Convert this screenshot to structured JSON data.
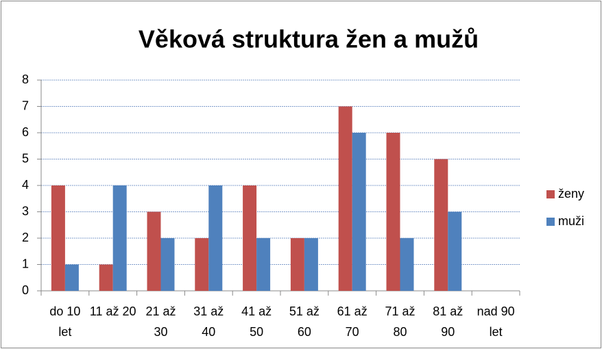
{
  "chart_data": {
    "type": "bar",
    "title": "Věková struktura žen a mužů",
    "categories": [
      "do 10 let",
      "11 až 20",
      "21 až 30",
      "31 až 40",
      "41 až 50",
      "51 až 60",
      "61 až 70",
      "71 až 80",
      "81 až 90",
      "nad 90 let"
    ],
    "series": [
      {
        "name": "ženy",
        "color": "#c0504d",
        "values": [
          4,
          1,
          3,
          2,
          4,
          2,
          7,
          6,
          5,
          null
        ]
      },
      {
        "name": "muži",
        "color": "#4f81bd",
        "values": [
          1,
          4,
          2,
          4,
          2,
          2,
          6,
          2,
          3,
          null
        ]
      }
    ],
    "ylim": [
      0,
      8
    ],
    "yticks": [
      0,
      1,
      2,
      3,
      4,
      5,
      6,
      7,
      8
    ],
    "grid": true,
    "legend": "right"
  }
}
